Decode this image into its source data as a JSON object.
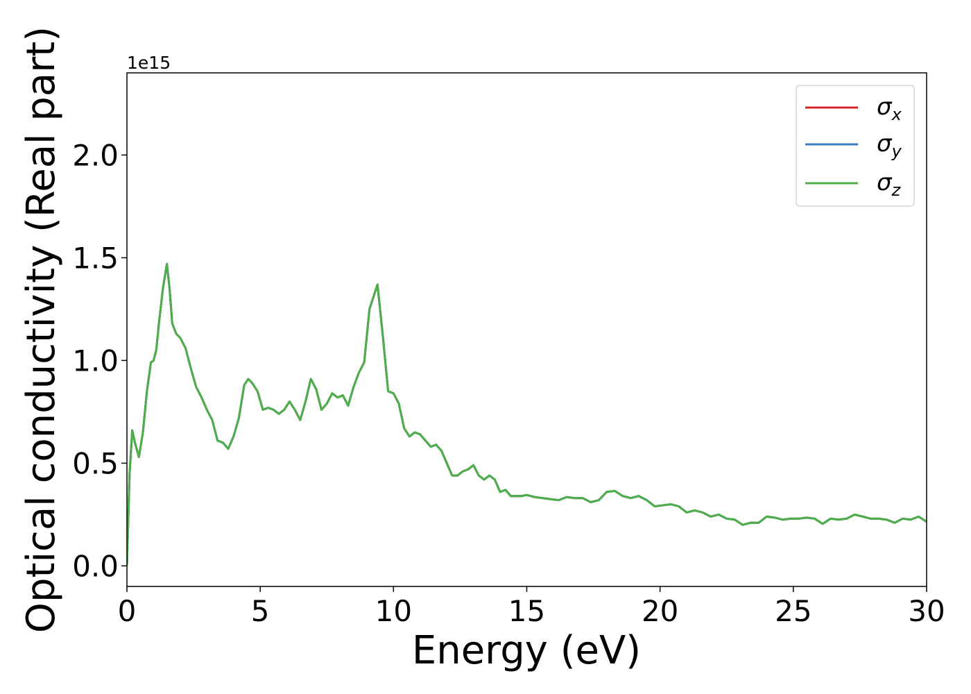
{
  "chart_data": {
    "type": "line",
    "title": "",
    "xlabel": "Energy (eV)",
    "ylabel": "Optical conductivity (Real part)",
    "y_offset_label": "1e15",
    "xlim": [
      0,
      30
    ],
    "ylim": [
      -0.1,
      2.4
    ],
    "y_scale_factor": 1000000000000000.0,
    "x_ticks": [
      0,
      5,
      10,
      15,
      20,
      25,
      30
    ],
    "x_tick_labels": [
      "0",
      "5",
      "10",
      "15",
      "20",
      "25",
      "30"
    ],
    "y_ticks": [
      0.0,
      0.5,
      1.0,
      1.5,
      2.0
    ],
    "y_tick_labels": [
      "0.0",
      "0.5",
      "1.0",
      "1.5",
      "2.0"
    ],
    "grid": false,
    "legend_position": "top-right",
    "series": [
      {
        "name": "σx",
        "base": "σ",
        "sub": "x",
        "color": "#d62728"
      },
      {
        "name": "σy",
        "base": "σ",
        "sub": "y",
        "color": "#3a7bbf"
      },
      {
        "name": "σz",
        "base": "σ",
        "sub": "z",
        "color": "#4daf4a"
      }
    ],
    "x": [
      0,
      0.1,
      0.2,
      0.3,
      0.45,
      0.6,
      0.75,
      0.9,
      1.0,
      1.1,
      1.2,
      1.35,
      1.5,
      1.6,
      1.7,
      1.85,
      2.0,
      2.2,
      2.4,
      2.6,
      2.8,
      3.0,
      3.2,
      3.4,
      3.6,
      3.8,
      4.0,
      4.2,
      4.4,
      4.55,
      4.7,
      4.9,
      5.1,
      5.3,
      5.5,
      5.7,
      5.9,
      6.1,
      6.3,
      6.5,
      6.7,
      6.9,
      7.1,
      7.3,
      7.5,
      7.7,
      7.9,
      8.1,
      8.3,
      8.5,
      8.7,
      8.9,
      9.1,
      9.25,
      9.4,
      9.6,
      9.8,
      10.0,
      10.2,
      10.4,
      10.6,
      10.8,
      11.0,
      11.2,
      11.4,
      11.6,
      11.8,
      12.0,
      12.2,
      12.4,
      12.6,
      12.8,
      13.0,
      13.2,
      13.4,
      13.6,
      13.8,
      14.0,
      14.2,
      14.4,
      14.6,
      14.8,
      15.0,
      15.3,
      15.6,
      15.9,
      16.2,
      16.5,
      16.8,
      17.1,
      17.4,
      17.7,
      18.0,
      18.3,
      18.6,
      18.9,
      19.2,
      19.5,
      19.8,
      20.1,
      20.4,
      20.7,
      21.0,
      21.3,
      21.6,
      21.9,
      22.2,
      22.5,
      22.8,
      23.1,
      23.4,
      23.7,
      24.0,
      24.3,
      24.6,
      24.9,
      25.2,
      25.5,
      25.8,
      26.1,
      26.4,
      26.7,
      27.0,
      27.3,
      27.6,
      27.9,
      28.2,
      28.5,
      28.8,
      29.1,
      29.4,
      29.7,
      30.0
    ],
    "y": [
      0.0,
      0.45,
      0.66,
      0.6,
      0.53,
      0.65,
      0.85,
      0.99,
      1.0,
      1.05,
      1.18,
      1.35,
      1.47,
      1.35,
      1.18,
      1.13,
      1.11,
      1.06,
      0.96,
      0.87,
      0.82,
      0.76,
      0.71,
      0.61,
      0.6,
      0.57,
      0.63,
      0.72,
      0.88,
      0.91,
      0.89,
      0.85,
      0.76,
      0.77,
      0.76,
      0.74,
      0.76,
      0.8,
      0.76,
      0.71,
      0.8,
      0.91,
      0.86,
      0.76,
      0.79,
      0.84,
      0.82,
      0.83,
      0.78,
      0.87,
      0.94,
      0.99,
      1.25,
      1.31,
      1.37,
      1.12,
      0.85,
      0.84,
      0.79,
      0.67,
      0.63,
      0.65,
      0.64,
      0.61,
      0.58,
      0.59,
      0.56,
      0.5,
      0.44,
      0.44,
      0.46,
      0.47,
      0.49,
      0.44,
      0.42,
      0.44,
      0.42,
      0.36,
      0.37,
      0.34,
      0.34,
      0.34,
      0.345,
      0.335,
      0.33,
      0.325,
      0.32,
      0.335,
      0.33,
      0.33,
      0.31,
      0.32,
      0.36,
      0.365,
      0.34,
      0.33,
      0.34,
      0.32,
      0.29,
      0.295,
      0.3,
      0.29,
      0.26,
      0.27,
      0.26,
      0.24,
      0.25,
      0.23,
      0.225,
      0.2,
      0.21,
      0.21,
      0.24,
      0.235,
      0.225,
      0.23,
      0.23,
      0.235,
      0.23,
      0.205,
      0.23,
      0.225,
      0.23,
      0.25,
      0.24,
      0.23,
      0.23,
      0.225,
      0.21,
      0.23,
      0.225,
      0.24,
      0.215
    ]
  }
}
